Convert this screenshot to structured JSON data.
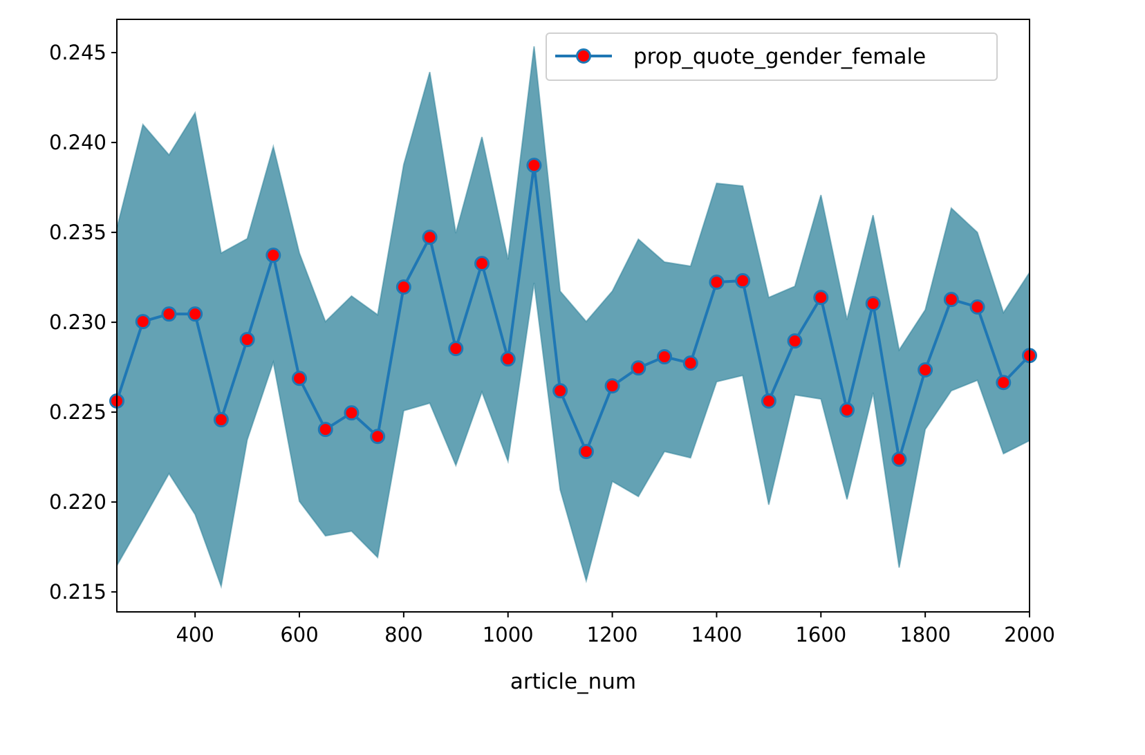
{
  "chart_data": {
    "type": "line",
    "title": "",
    "xlabel": "article_num",
    "ylabel": "",
    "xlim": [
      250,
      2000
    ],
    "ylim": [
      0.21389,
      0.24685
    ],
    "xticks": [
      400,
      600,
      800,
      1000,
      1200,
      1400,
      1600,
      1800,
      2000
    ],
    "xtick_labels": [
      "400",
      "600",
      "800",
      "1000",
      "1200",
      "1400",
      "1600",
      "1800",
      "2000"
    ],
    "yticks": [
      0.215,
      0.22,
      0.225,
      0.23,
      0.235,
      0.24,
      0.245
    ],
    "ytick_labels": [
      "0.215",
      "0.220",
      "0.225",
      "0.230",
      "0.235",
      "0.240",
      "0.245"
    ],
    "grid": false,
    "legend_position": "top-right",
    "x": [
      250,
      300,
      350,
      400,
      450,
      500,
      550,
      600,
      650,
      700,
      750,
      800,
      850,
      900,
      950,
      1000,
      1050,
      1100,
      1150,
      1200,
      1250,
      1300,
      1350,
      1400,
      1450,
      1500,
      1550,
      1600,
      1650,
      1700,
      1750,
      1800,
      1850,
      1900,
      1950,
      2000
    ],
    "series": [
      {
        "name": "prop_quote_gender_female",
        "color": "#1f77b4",
        "marker_color": "#ff0000",
        "values": [
          0.22562,
          0.23004,
          0.23046,
          0.23046,
          0.22458,
          0.22904,
          0.23373,
          0.22688,
          0.22404,
          0.22496,
          0.22365,
          0.23196,
          0.23473,
          0.22854,
          0.23327,
          0.22796,
          0.23873,
          0.22619,
          0.22281,
          0.22646,
          0.22746,
          0.22808,
          0.22773,
          0.23223,
          0.23231,
          0.22562,
          0.22896,
          0.23138,
          0.22512,
          0.23104,
          0.22238,
          0.22735,
          0.23127,
          0.23085,
          0.22665,
          0.22815
        ]
      }
    ],
    "band": {
      "color": "#2a7f98",
      "upper": [
        0.23523,
        0.241,
        0.23931,
        0.24165,
        0.23385,
        0.23465,
        0.23977,
        0.23385,
        0.23004,
        0.23146,
        0.23042,
        0.23877,
        0.24392,
        0.23496,
        0.24031,
        0.2335,
        0.24535,
        0.23173,
        0.23004,
        0.23173,
        0.23462,
        0.23335,
        0.23312,
        0.23773,
        0.23758,
        0.23138,
        0.232,
        0.23708,
        0.23015,
        0.23596,
        0.22846,
        0.23069,
        0.23635,
        0.235,
        0.23054,
        0.23277
      ],
      "lower": [
        0.21646,
        0.219,
        0.22158,
        0.21931,
        0.21531,
        0.22346,
        0.22777,
        0.22004,
        0.21812,
        0.21838,
        0.21692,
        0.22508,
        0.2255,
        0.22204,
        0.22612,
        0.22227,
        0.23219,
        0.22069,
        0.21562,
        0.22115,
        0.22031,
        0.22281,
        0.22246,
        0.22669,
        0.22704,
        0.21985,
        0.22596,
        0.22573,
        0.22015,
        0.22608,
        0.21635,
        0.22404,
        0.22619,
        0.22677,
        0.22269,
        0.22342
      ]
    }
  }
}
